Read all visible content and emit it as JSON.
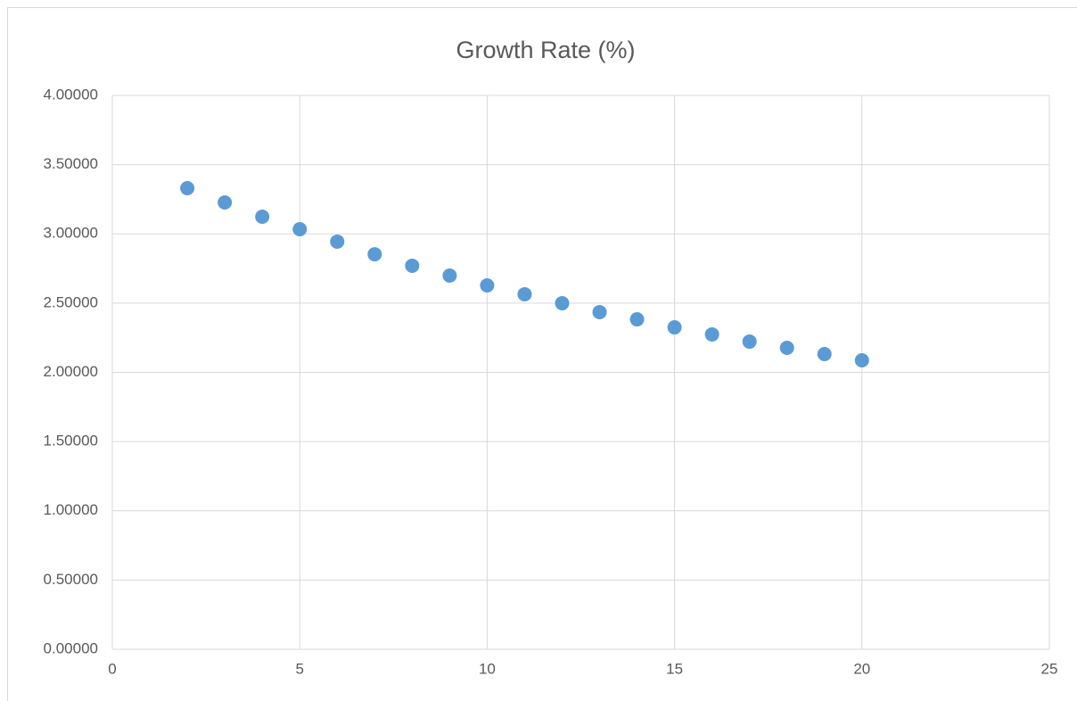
{
  "chart_data": {
    "type": "scatter",
    "title": "Growth Rate (%)",
    "x": [
      2,
      3,
      4,
      5,
      6,
      7,
      8,
      9,
      10,
      11,
      12,
      13,
      14,
      15,
      16,
      17,
      18,
      19,
      20
    ],
    "series": [
      {
        "color": "#5b9bd5",
        "values": [
          3.33,
          3.227,
          3.124,
          3.034,
          2.944,
          2.853,
          2.77,
          2.699,
          2.628,
          2.564,
          2.499,
          2.435,
          2.383,
          2.325,
          2.274,
          2.222,
          2.177,
          2.132,
          2.087
        ]
      }
    ],
    "xlim": [
      0,
      25
    ],
    "xticks": [
      0,
      5,
      10,
      15,
      20,
      25
    ],
    "ylim": [
      0,
      4
    ],
    "yticks": [
      {
        "value": 0,
        "label": "0.00000"
      },
      {
        "value": 0.5,
        "label": "0.50000"
      },
      {
        "value": 1,
        "label": "1.00000"
      },
      {
        "value": 1.5,
        "label": "1.50000"
      },
      {
        "value": 2,
        "label": "2.00000"
      },
      {
        "value": 2.5,
        "label": "2.50000"
      },
      {
        "value": 3,
        "label": "3.00000"
      },
      {
        "value": 3.5,
        "label": "3.50000"
      },
      {
        "value": 4,
        "label": "4.00000"
      }
    ],
    "grid": true
  }
}
